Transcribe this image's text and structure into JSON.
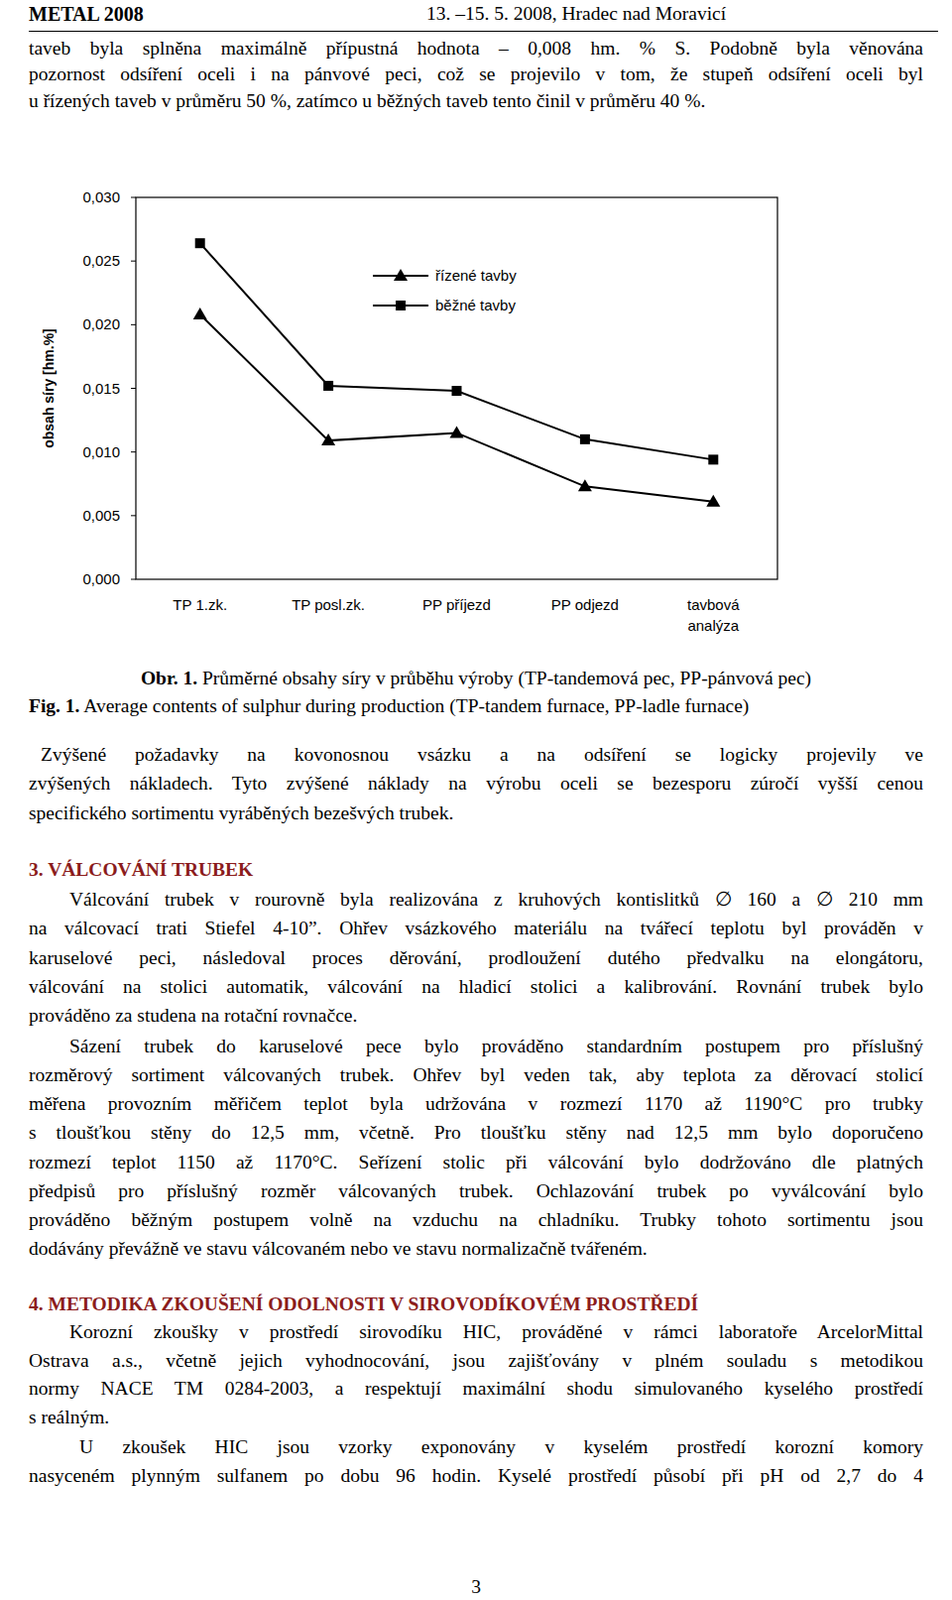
{
  "header": {
    "left": "METAL 2008",
    "right": "13. –15. 5. 2008, Hradec nad Moravicí"
  },
  "paragraph_1": [
    "taveb byla splněna maximálně přípustná hodnota – 0,008 hm. % S. Podobně byla věnována",
    "pozornost odsíření oceli i na pánvové peci, což se projevilo v tom, že stupeň odsíření oceli byl",
    "u řízených taveb v průměru 50 %, zatímco u běžných taveb tento činil v průměru 40 %."
  ],
  "chart_data": {
    "type": "line",
    "y_label": "obsah síry [hm.%]",
    "categories": [
      "TP 1.zk.",
      "TP posl.zk.",
      "PP příjezd",
      "PP odjezd",
      "tavbová analýza"
    ],
    "series": [
      {
        "name": "řízené tavby",
        "color": "#000000",
        "marker": "triangle",
        "line_style": "solid",
        "values": [
          0.0208,
          0.0109,
          0.0115,
          0.0073,
          0.0061
        ]
      },
      {
        "name": "běžné tavby",
        "color": "#000000",
        "marker": "square",
        "line_style": "solid",
        "values": [
          0.0264,
          0.0152,
          0.0148,
          0.011,
          0.0094
        ]
      }
    ],
    "ylim": [
      0,
      0.03
    ],
    "yticks": [
      {
        "value": 0,
        "label": "0,000"
      },
      {
        "value": 0.005,
        "label": "0,005"
      },
      {
        "value": 0.01,
        "label": "0,010"
      },
      {
        "value": 0.015,
        "label": "0,015"
      },
      {
        "value": 0.02,
        "label": "0,020"
      },
      {
        "value": 0.025,
        "label": "0,025"
      },
      {
        "value": 0.03,
        "label": "0,030"
      }
    ],
    "grid": false,
    "legend": "top"
  },
  "figure": {
    "caption_cz": {
      "label": "Obr. 1.",
      "text": "Průměrné obsahy síry v průběhu výroby (TP-tandemová pec, PP-pánvová pec)"
    },
    "caption_en": {
      "label": "Fig. 1.",
      "text": "Average contents of sulphur during production (TP-tandem furnace, PP-ladle furnace)"
    }
  },
  "paragraph_2": [
    "Zvýšené požadavky na kovonosnou vsázku a na odsíření se logicky projevily ve",
    "zvýšených nákladech. Tyto zvýšené náklady na výrobu oceli se bezesporu zúročí vyšší cenou",
    "specifického sortimentu vyráběných bezešvých trubek."
  ],
  "section_3": {
    "heading": "3. VÁLCOVÁNÍ TRUBEK",
    "paragraphs": [
      [
        "Válcování trubek v rourovně byla realizována z kruhových kontislitků ∅ 160 a ∅ 210 mm",
        "na válcovací trati Stiefel 4-10”. Ohřev vsázkového materiálu na tvářecí teplotu byl prováděn v",
        "karuselové peci, následoval proces děrování, prodloužení dutého předvalku na elongátoru,",
        "válcování na stolici automatik, válcování na hladicí stolici a kalibrování. Rovnání trubek bylo",
        "prováděno za studena na rotační rovnačce."
      ],
      [
        "Sázení trubek do karuselové pece bylo prováděno standardním postupem pro příslušný",
        "rozměrový sortiment válcovaných trubek. Ohřev byl veden tak, aby teplota za děrovací stolicí",
        "měřena provozním měřičem teplot byla udržována v rozmezí 1170 až 1190°C pro trubky",
        "s tloušťkou stěny do 12,5 mm, včetně. Pro tloušťku stěny nad 12,5 mm bylo doporučeno",
        "rozmezí teplot 1150 až 1170°C. Seřízení stolic při válcování bylo dodržováno dle platných",
        "předpisů pro příslušný rozměr válcovaných trubek. Ochlazování trubek po vyválcování bylo",
        "prováděno běžným postupem volně na vzduchu na chladníku. Trubky tohoto sortimentu jsou",
        "dodávány převážně ve stavu válcovaném nebo ve stavu normalizačně tvářeném."
      ]
    ]
  },
  "section_4": {
    "heading": "4. METODIKA ZKOUŠENÍ ODOLNOSTI V SIROVODÍKOVÉM PROSTŘEDÍ",
    "paragraphs": [
      [
        "Korozní zkoušky v prostředí sirovodíku HIC, prováděné v rámci laboratoře ArcelorMittal",
        "Ostrava a.s., včetně jejich vyhodnocování, jsou zajišťovány v plném souladu s metodikou",
        "normy NACE TM 0284-2003, a respektují maximální shodu simulovaného kyselého prostředí",
        "s reálným."
      ],
      [
        "U zkoušek HIC jsou vzorky exponovány v kyselém prostředí korozní komory",
        "nasyceném plynným sulfanem po dobu 96 hodin. Kyselé prostředí působí při pH od 2,7 do 4"
      ]
    ]
  },
  "page_number": 3
}
